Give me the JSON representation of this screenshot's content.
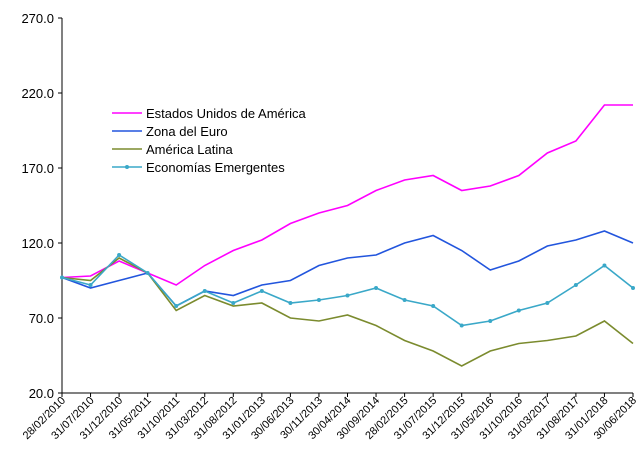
{
  "chart_data": {
    "type": "line",
    "categories": [
      "28/02/2010",
      "31/07/2010",
      "31/12/2010",
      "31/05/2011",
      "31/10/2011",
      "31/03/2012",
      "31/08/2012",
      "31/01/2013",
      "30/06/2013",
      "30/11/2013",
      "30/04/2014",
      "30/09/2014",
      "28/02/2015",
      "31/07/2015",
      "31/12/2015",
      "31/05/2016",
      "31/10/2016",
      "31/03/2017",
      "31/08/2017",
      "31/01/2018",
      "30/06/2018"
    ],
    "series": [
      {
        "name": "Estados Unidos de América",
        "color": "#ff00ff",
        "values": [
          97,
          98,
          108,
          100,
          92,
          105,
          115,
          122,
          133,
          140,
          145,
          155,
          162,
          165,
          155,
          158,
          165,
          180,
          188,
          212,
          212
        ]
      },
      {
        "name": "Zona del Euro",
        "color": "#2255dd",
        "values": [
          97,
          90,
          95,
          100,
          78,
          88,
          85,
          92,
          95,
          105,
          110,
          112,
          120,
          125,
          115,
          102,
          108,
          118,
          122,
          128,
          120
        ]
      },
      {
        "name": "América Latina",
        "color": "#7b8b2e",
        "values": [
          97,
          95,
          110,
          100,
          75,
          85,
          78,
          80,
          70,
          68,
          72,
          65,
          55,
          48,
          38,
          48,
          53,
          55,
          58,
          68,
          53
        ]
      },
      {
        "name": "Economías Emergentes",
        "color": "#3aa8c8",
        "marker": true,
        "values": [
          97,
          92,
          112,
          100,
          78,
          88,
          80,
          88,
          80,
          82,
          85,
          90,
          82,
          78,
          65,
          68,
          75,
          80,
          92,
          105,
          90
        ]
      }
    ],
    "ylim": [
      20,
      270
    ],
    "yticks": [
      {
        "value": 20,
        "label": "20.0"
      },
      {
        "value": 70,
        "label": "70.0"
      },
      {
        "value": 120,
        "label": "120.0"
      },
      {
        "value": 170,
        "label": "170.0"
      },
      {
        "value": 220,
        "label": "220.0"
      },
      {
        "value": 270,
        "label": "270.0"
      }
    ],
    "grid": false,
    "legend": "upper left"
  }
}
